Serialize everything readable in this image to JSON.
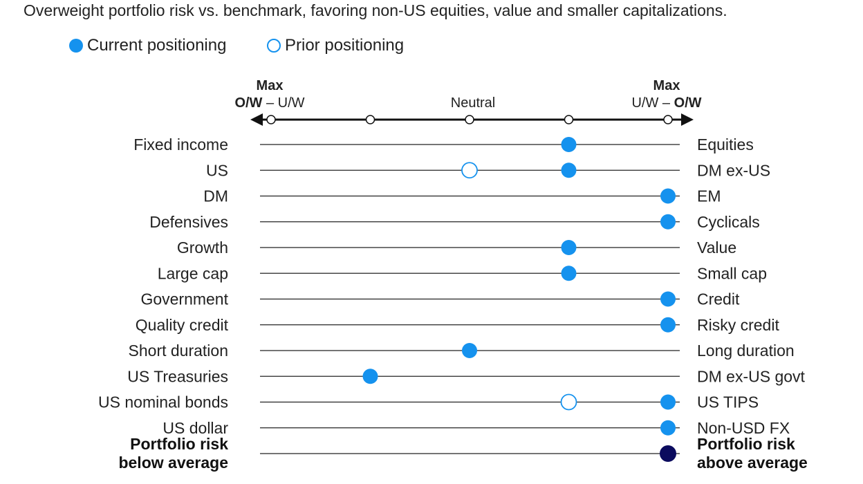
{
  "subtitle": "Overweight portfolio risk vs. benchmark, favoring non-US equities, value and smaller capitalizations.",
  "legend": {
    "current": "Current positioning",
    "prior": "Prior positioning"
  },
  "colors": {
    "current": "#1592ee",
    "prior_stroke": "#1592ee",
    "portfolio_risk": "#0b0b5e",
    "line": "#222222"
  },
  "chart_data": {
    "type": "scatter",
    "title": "Overweight portfolio risk vs. benchmark, favoring non-US equities, value and smaller capitalizations.",
    "scale_ticks": [
      -2,
      -1,
      0,
      1,
      2
    ],
    "xlim": [
      -2,
      2
    ],
    "axis_labels": {
      "left": {
        "line1": "Max",
        "line2_bold": "O/W",
        "line2_rest": " – U/W"
      },
      "center": "Neutral",
      "right": {
        "line1": "Max",
        "line2_rest": "U/W – ",
        "line2_bold": "O/W"
      }
    },
    "rows": [
      {
        "left": "Fixed income",
        "right": "Equities",
        "current": 1,
        "prior": null
      },
      {
        "left": "US",
        "right": "DM ex-US",
        "current": 1,
        "prior": 0
      },
      {
        "left": "DM",
        "right": "EM",
        "current": 2,
        "prior": null
      },
      {
        "left": "Defensives",
        "right": "Cyclicals",
        "current": 2,
        "prior": null
      },
      {
        "left": "Growth",
        "right": "Value",
        "current": 1,
        "prior": null
      },
      {
        "left": "Large cap",
        "right": "Small cap",
        "current": 1,
        "prior": null
      },
      {
        "left": "Government",
        "right": "Credit",
        "current": 2,
        "prior": null
      },
      {
        "left": "Quality credit",
        "right": "Risky credit",
        "current": 2,
        "prior": null
      },
      {
        "left": "Short duration",
        "right": "Long duration",
        "current": 0,
        "prior": null
      },
      {
        "left": "US Treasuries",
        "right": "DM ex-US govt",
        "current": -1,
        "prior": null
      },
      {
        "left": "US nominal bonds",
        "right": "US TIPS",
        "current": 2,
        "prior": 1
      },
      {
        "left": "US dollar",
        "right": "Non-USD FX",
        "current": 2,
        "prior": null
      },
      {
        "left": [
          "Portfolio risk",
          "below average"
        ],
        "right": [
          "Portfolio risk",
          "above average"
        ],
        "current": 2,
        "prior": null,
        "bold": true
      }
    ]
  }
}
